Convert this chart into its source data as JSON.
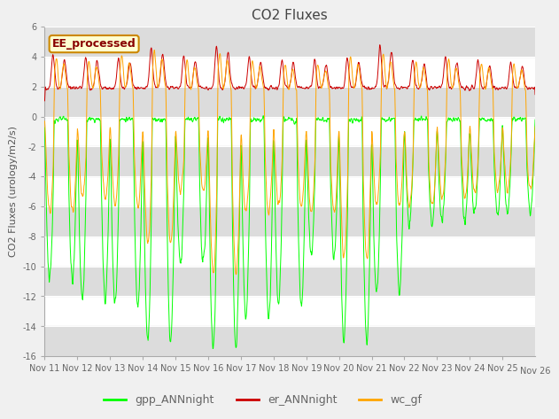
{
  "title": "CO2 Fluxes",
  "ylabel": "CO2 Fluxes (urology/m2/s)",
  "ylim": [
    -16,
    6
  ],
  "yticks": [
    -16,
    -14,
    -12,
    -10,
    -8,
    -6,
    -4,
    -2,
    0,
    2,
    4,
    6
  ],
  "xtick_labels": [
    "Nov 11",
    "Nov 12",
    "Nov 13",
    "Nov 14",
    "Nov 15",
    "Nov 16",
    "Nov 17",
    "Nov 18",
    "Nov 19",
    "Nov 20",
    "Nov 21",
    "Nov 22",
    "Nov 23",
    "Nov 24",
    "Nov 25",
    "Nov 26"
  ],
  "legend_label": "EE_processed",
  "line_labels": [
    "gpp_ANNnight",
    "er_ANNnight",
    "wc_gf"
  ],
  "line_colors": [
    "#00FF00",
    "#CC0000",
    "#FFA500"
  ],
  "bg_color": "#F0F0F0",
  "plot_bg": "#FFFFFF",
  "legend_box_color": "#FFFFD0",
  "legend_box_edge": "#CC8800",
  "legend_text_color": "#880000",
  "title_color": "#444444",
  "axis_label_color": "#555555",
  "tick_color": "#666666",
  "band_color": "#DCDCDC",
  "n_points": 1500
}
